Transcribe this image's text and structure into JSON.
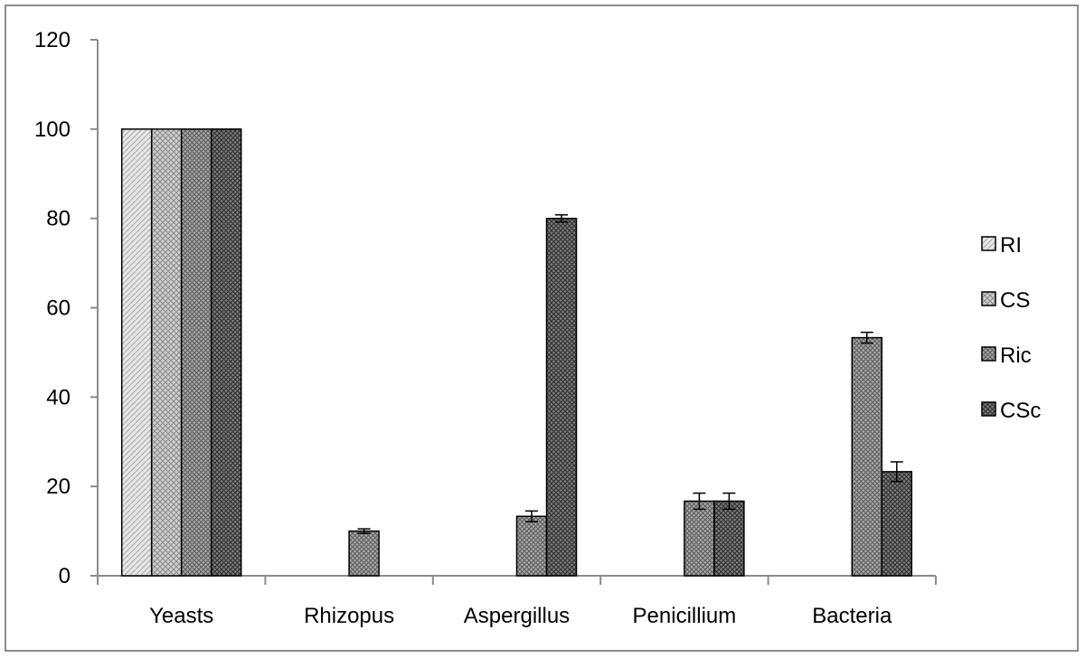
{
  "chart_data": {
    "type": "bar",
    "title": "",
    "xlabel": "",
    "ylabel": "",
    "ylim": [
      0,
      120
    ],
    "yticks": [
      0,
      20,
      40,
      60,
      80,
      100,
      120
    ],
    "grid": false,
    "legend_position": "right",
    "categories": [
      "Yeasts",
      "Rhizopus",
      "Aspergillus",
      "Penicillium",
      "Bacteria"
    ],
    "series": [
      {
        "name": "RI",
        "values": [
          100,
          0,
          0,
          0,
          0
        ],
        "errors": [
          0,
          0,
          0,
          0,
          0
        ],
        "pattern": "diag-light"
      },
      {
        "name": "CS",
        "values": [
          100,
          0,
          0,
          0,
          0
        ],
        "errors": [
          0,
          0,
          0,
          0,
          0
        ],
        "pattern": "cross-light"
      },
      {
        "name": "Ric",
        "values": [
          100,
          10,
          13.3,
          16.7,
          53.3
        ],
        "errors": [
          0,
          0.5,
          1.2,
          1.8,
          1.2
        ],
        "pattern": "cross-mid"
      },
      {
        "name": "CSc",
        "values": [
          100,
          0,
          80,
          16.7,
          23.3
        ],
        "errors": [
          0,
          0,
          0.8,
          1.8,
          2.2
        ],
        "pattern": "cross-dark"
      }
    ],
    "colors": {
      "axis": "#8c8c8c",
      "bar_stroke": "#000000",
      "diag-light": "#d9d9d9",
      "cross-light": "#bfbfbf",
      "cross-mid": "#8f8f8f",
      "cross-dark": "#5a5a5a"
    }
  }
}
